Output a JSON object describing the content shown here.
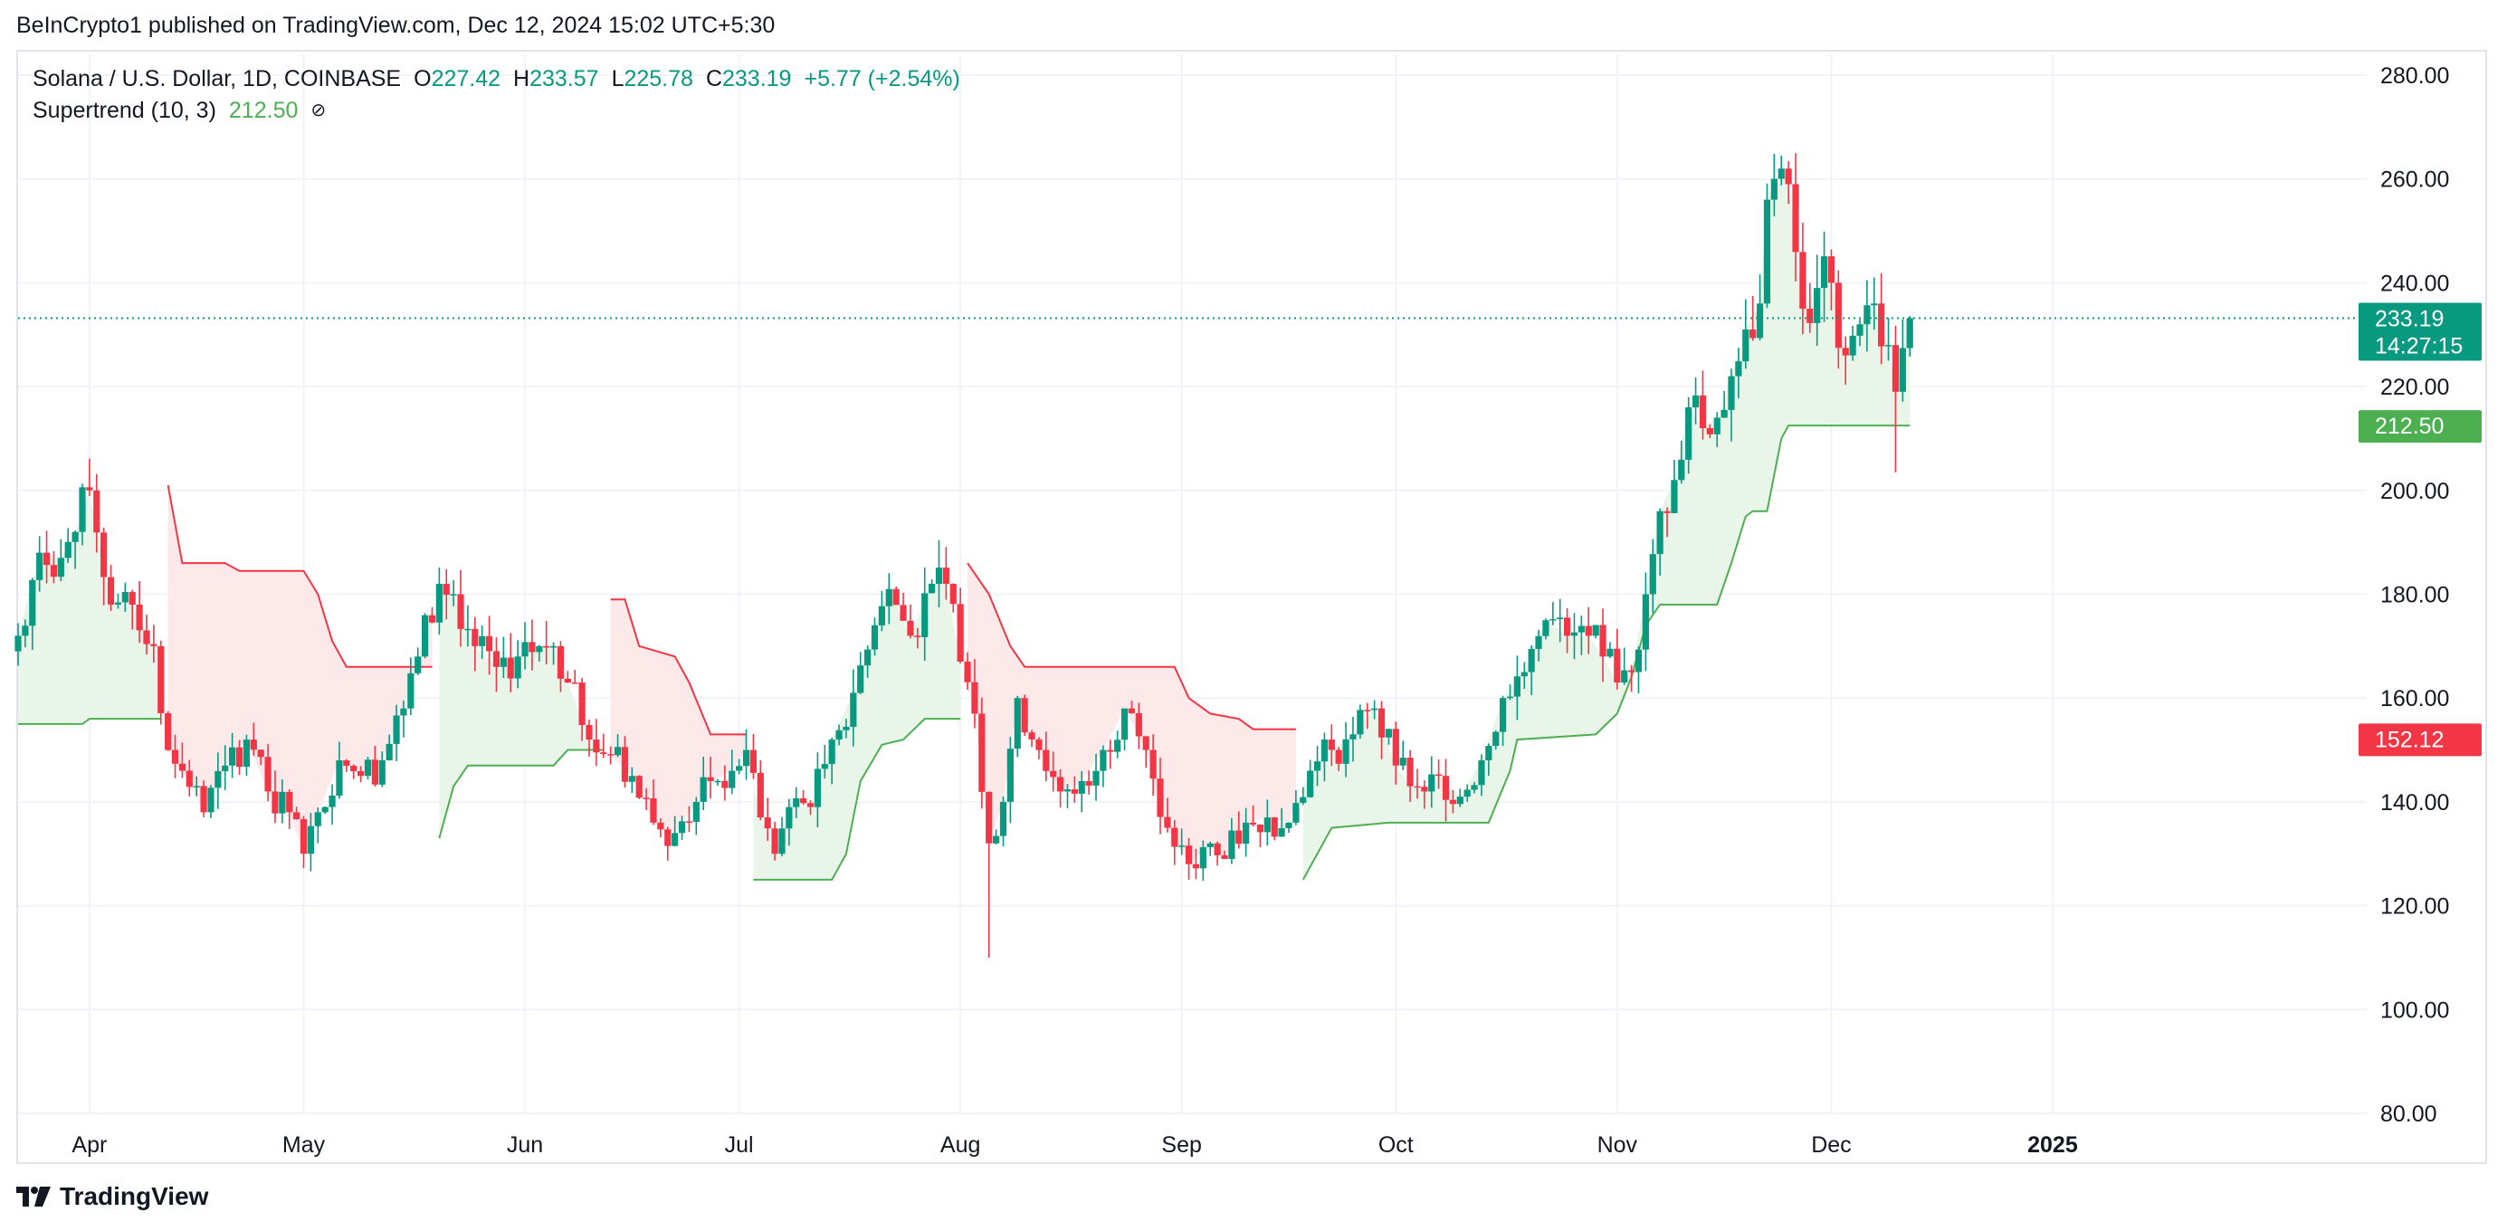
{
  "header": {
    "published_line": "BeInCrypto1 published on TradingView.com, Dec 12, 2024 15:02 UTC+5:30"
  },
  "legend": {
    "symbol": "Solana / U.S. Dollar, 1D, COINBASE",
    "open_label": "O",
    "open_value": "227.42",
    "high_label": "H",
    "high_value": "233.57",
    "low_label": "L",
    "low_value": "225.78",
    "close_label": "C",
    "close_value": "233.19",
    "change": "+5.77 (+2.54%)",
    "indicator_name": "Supertrend (10, 3)",
    "indicator_value": "212.50",
    "eye_icon": "eye-off-icon"
  },
  "price_labels": {
    "last_price": "233.19",
    "countdown": "14:27:15",
    "supertrend_up": "212.50",
    "supertrend_down": "152.12"
  },
  "footer": {
    "brand": "TradingView",
    "logo_icon": "tradingview-logo-icon"
  },
  "colors": {
    "up": "#089981",
    "down": "#f23645",
    "supertrend_up": "#4caf50",
    "supertrend_down": "#f23645",
    "fill_up": "#eaf5ea",
    "fill_down": "#fde8ea",
    "grid": "#f0f3fa",
    "axis_text": "#131722"
  },
  "chart_data": {
    "type": "candlestick",
    "symbol": "Solana / U.S. Dollar",
    "interval": "1D",
    "exchange": "COINBASE",
    "y_axis": {
      "range": [
        80,
        280
      ],
      "ticks": [
        "280.00",
        "260.00",
        "240.00",
        "220.00",
        "200.00",
        "180.00",
        "160.00",
        "140.00",
        "120.00",
        "100.00",
        "80.00"
      ]
    },
    "x_axis": {
      "range": [
        "2024-03-22",
        "2025-02-14"
      ],
      "ticks": [
        {
          "label": "Apr",
          "date": "2024-04-01"
        },
        {
          "label": "May",
          "date": "2024-05-01"
        },
        {
          "label": "Jun",
          "date": "2024-06-01"
        },
        {
          "label": "Jul",
          "date": "2024-07-01"
        },
        {
          "label": "Aug",
          "date": "2024-08-01"
        },
        {
          "label": "Sep",
          "date": "2024-09-01"
        },
        {
          "label": "Oct",
          "date": "2024-10-01"
        },
        {
          "label": "Nov",
          "date": "2024-11-01"
        },
        {
          "label": "Dec",
          "date": "2024-12-01"
        },
        {
          "label": "2025",
          "date": "2025-01-01",
          "bold": true
        }
      ]
    },
    "grid": true,
    "last_price_line": 233.19,
    "close_anchors": [
      [
        "2024-03-22",
        172
      ],
      [
        "2024-03-25",
        188
      ],
      [
        "2024-03-28",
        187
      ],
      [
        "2024-03-30",
        192
      ],
      [
        "2024-04-01",
        200
      ],
      [
        "2024-04-04",
        178
      ],
      [
        "2024-04-07",
        178
      ],
      [
        "2024-04-10",
        170
      ],
      [
        "2024-04-12",
        150
      ],
      [
        "2024-04-14",
        146
      ],
      [
        "2024-04-17",
        138
      ],
      [
        "2024-04-20",
        147
      ],
      [
        "2024-04-23",
        152
      ],
      [
        "2024-04-26",
        142
      ],
      [
        "2024-04-29",
        138
      ],
      [
        "2024-05-01",
        130
      ],
      [
        "2024-05-03",
        138
      ],
      [
        "2024-05-06",
        148
      ],
      [
        "2024-05-09",
        145
      ],
      [
        "2024-05-12",
        148
      ],
      [
        "2024-05-15",
        158
      ],
      [
        "2024-05-17",
        168
      ],
      [
        "2024-05-20",
        182
      ],
      [
        "2024-05-22",
        180
      ],
      [
        "2024-05-25",
        170
      ],
      [
        "2024-05-28",
        166
      ],
      [
        "2024-05-31",
        168
      ],
      [
        "2024-06-03",
        170
      ],
      [
        "2024-06-05",
        170
      ],
      [
        "2024-06-07",
        163
      ],
      [
        "2024-06-10",
        152
      ],
      [
        "2024-06-13",
        149
      ],
      [
        "2024-06-16",
        145
      ],
      [
        "2024-06-19",
        136
      ],
      [
        "2024-06-22",
        134
      ],
      [
        "2024-06-25",
        140
      ],
      [
        "2024-06-27",
        144
      ],
      [
        "2024-06-30",
        146
      ],
      [
        "2024-07-02",
        150
      ],
      [
        "2024-07-04",
        137
      ],
      [
        "2024-07-06",
        130
      ],
      [
        "2024-07-08",
        139
      ],
      [
        "2024-07-11",
        139
      ],
      [
        "2024-07-14",
        152
      ],
      [
        "2024-07-17",
        161
      ],
      [
        "2024-07-20",
        174
      ],
      [
        "2024-07-22",
        181
      ],
      [
        "2024-07-25",
        172
      ],
      [
        "2024-07-28",
        182
      ],
      [
        "2024-07-30",
        182
      ],
      [
        "2024-08-01",
        167
      ],
      [
        "2024-08-03",
        157
      ],
      [
        "2024-08-05",
        132
      ],
      [
        "2024-08-07",
        140
      ],
      [
        "2024-08-09",
        160
      ],
      [
        "2024-08-12",
        150
      ],
      [
        "2024-08-15",
        142
      ],
      [
        "2024-08-18",
        144
      ],
      [
        "2024-08-21",
        150
      ],
      [
        "2024-08-24",
        158
      ],
      [
        "2024-08-27",
        150
      ],
      [
        "2024-08-30",
        135
      ],
      [
        "2024-09-02",
        128
      ],
      [
        "2024-09-05",
        132
      ],
      [
        "2024-09-07",
        129
      ],
      [
        "2024-09-10",
        136
      ],
      [
        "2024-09-13",
        137
      ],
      [
        "2024-09-16",
        136
      ],
      [
        "2024-09-19",
        146
      ],
      [
        "2024-09-22",
        150
      ],
      [
        "2024-09-25",
        153
      ],
      [
        "2024-09-28",
        158
      ],
      [
        "2024-10-01",
        147
      ],
      [
        "2024-10-03",
        143
      ],
      [
        "2024-10-05",
        142
      ],
      [
        "2024-10-07",
        145
      ],
      [
        "2024-10-10",
        141
      ],
      [
        "2024-10-13",
        148
      ],
      [
        "2024-10-16",
        160
      ],
      [
        "2024-10-19",
        165
      ],
      [
        "2024-10-22",
        175
      ],
      [
        "2024-10-25",
        172
      ],
      [
        "2024-10-28",
        172
      ],
      [
        "2024-10-30",
        168
      ],
      [
        "2024-11-01",
        163
      ],
      [
        "2024-11-03",
        165
      ],
      [
        "2024-11-05",
        180
      ],
      [
        "2024-11-07",
        196
      ],
      [
        "2024-11-09",
        202
      ],
      [
        "2024-11-11",
        216
      ],
      [
        "2024-11-13",
        212
      ],
      [
        "2024-11-15",
        214
      ],
      [
        "2024-11-17",
        222
      ],
      [
        "2024-11-19",
        231
      ],
      [
        "2024-11-21",
        236
      ],
      [
        "2024-11-22",
        256
      ],
      [
        "2024-11-24",
        262
      ],
      [
        "2024-11-25",
        259
      ],
      [
        "2024-11-27",
        235
      ],
      [
        "2024-11-29",
        239
      ],
      [
        "2024-12-01",
        240
      ],
      [
        "2024-12-03",
        226
      ],
      [
        "2024-12-05",
        232
      ],
      [
        "2024-12-07",
        236
      ],
      [
        "2024-12-09",
        228
      ],
      [
        "2024-12-10",
        219
      ],
      [
        "2024-12-11",
        227.42
      ],
      [
        "2024-12-12",
        233.19
      ]
    ],
    "supertrend": {
      "name": "Supertrend (10, 3)",
      "current": 212.5,
      "down_line_label": 152.12,
      "segments": [
        {
          "dir": "up",
          "points": [
            [
              "2024-03-22",
              155
            ],
            [
              "2024-03-31",
              155
            ],
            [
              "2024-04-01",
              156
            ],
            [
              "2024-04-11",
              156
            ]
          ]
        },
        {
          "dir": "down",
          "points": [
            [
              "2024-04-12",
              201
            ],
            [
              "2024-04-14",
              186
            ],
            [
              "2024-04-20",
              186
            ],
            [
              "2024-04-22",
              184.5
            ],
            [
              "2024-05-01",
              184.5
            ],
            [
              "2024-05-03",
              180
            ],
            [
              "2024-05-05",
              171
            ],
            [
              "2024-05-07",
              166
            ],
            [
              "2024-05-19",
              166
            ]
          ]
        },
        {
          "dir": "up",
          "points": [
            [
              "2024-05-20",
              133
            ],
            [
              "2024-05-22",
              143
            ],
            [
              "2024-05-24",
              147
            ],
            [
              "2024-06-05",
              147
            ],
            [
              "2024-06-07",
              150
            ],
            [
              "2024-06-12",
              150
            ]
          ]
        },
        {
          "dir": "down",
          "points": [
            [
              "2024-06-13",
              179
            ],
            [
              "2024-06-15",
              179
            ],
            [
              "2024-06-17",
              170
            ],
            [
              "2024-06-22",
              168
            ],
            [
              "2024-06-24",
              163
            ],
            [
              "2024-06-27",
              153
            ],
            [
              "2024-07-02",
              153
            ]
          ]
        },
        {
          "dir": "up",
          "points": [
            [
              "2024-07-03",
              125
            ],
            [
              "2024-07-14",
              125
            ],
            [
              "2024-07-16",
              130
            ],
            [
              "2024-07-18",
              144
            ],
            [
              "2024-07-21",
              151
            ],
            [
              "2024-07-24",
              152
            ],
            [
              "2024-07-27",
              156
            ],
            [
              "2024-08-01",
              156
            ]
          ]
        },
        {
          "dir": "down",
          "points": [
            [
              "2024-08-02",
              186
            ],
            [
              "2024-08-05",
              180
            ],
            [
              "2024-08-08",
              170
            ],
            [
              "2024-08-10",
              166
            ],
            [
              "2024-08-12",
              166
            ],
            [
              "2024-08-31",
              166
            ],
            [
              "2024-09-02",
              160
            ],
            [
              "2024-09-05",
              157
            ],
            [
              "2024-09-09",
              156
            ],
            [
              "2024-09-11",
              154
            ],
            [
              "2024-09-17",
              154
            ]
          ]
        },
        {
          "dir": "up",
          "points": [
            [
              "2024-09-18",
              125
            ],
            [
              "2024-09-20",
              130
            ],
            [
              "2024-09-22",
              135
            ],
            [
              "2024-09-30",
              136
            ],
            [
              "2024-10-14",
              136
            ],
            [
              "2024-10-17",
              146
            ],
            [
              "2024-10-18",
              152
            ],
            [
              "2024-10-29",
              153
            ],
            [
              "2024-11-01",
              157
            ],
            [
              "2024-11-03",
              164
            ],
            [
              "2024-11-05",
              174
            ],
            [
              "2024-11-07",
              178
            ],
            [
              "2024-11-15",
              178
            ],
            [
              "2024-11-17",
              186
            ],
            [
              "2024-11-19",
              195
            ],
            [
              "2024-11-20",
              196
            ],
            [
              "2024-11-22",
              196
            ],
            [
              "2024-11-24",
              210
            ],
            [
              "2024-11-25",
              212.5
            ],
            [
              "2024-12-12",
              212.5
            ]
          ]
        }
      ]
    }
  }
}
